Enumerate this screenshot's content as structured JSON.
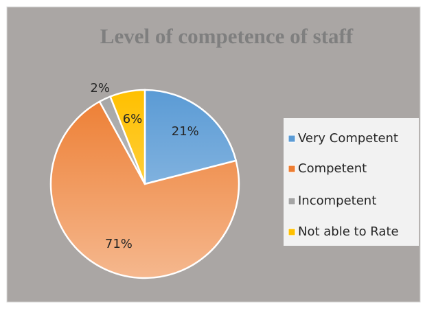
{
  "chart_data": {
    "type": "pie",
    "title": "Level of competence of staff",
    "categories": [
      "Very Competent",
      "Competent",
      "Incompetent",
      "Not able to Rate"
    ],
    "values": [
      21,
      71,
      2,
      6
    ],
    "value_labels": [
      "21%",
      "71%",
      "2%",
      "6%"
    ],
    "colors": [
      "#5b9bd5",
      "#ed7d31",
      "#a5a5a5",
      "#ffc000"
    ],
    "legend": "right"
  }
}
